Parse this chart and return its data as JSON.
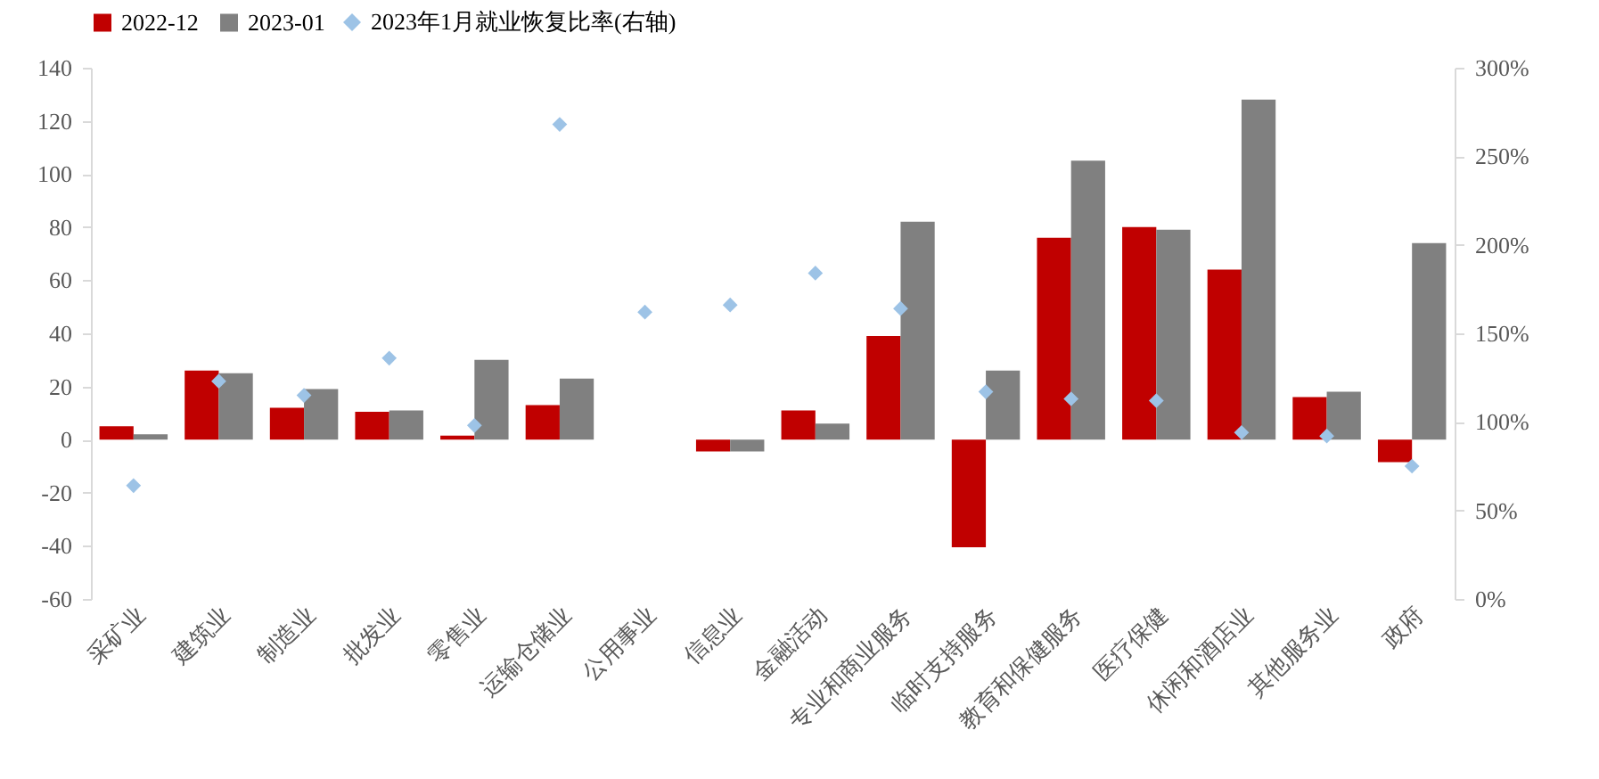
{
  "chart_data": {
    "type": "bar",
    "categories": [
      "采矿业",
      "建筑业",
      "制造业",
      "批发业",
      "零售业",
      "运输仓储业",
      "公用事业",
      "信息业",
      "金融活动",
      "专业和商业服务",
      "临时支持服务",
      "教育和保健服务",
      "医疗保健",
      "休闲和酒店业",
      "其他服务业",
      "政府"
    ],
    "series": [
      {
        "name": "2022-12",
        "color": "#c00000",
        "values": [
          5,
          26,
          12,
          10.5,
          1.5,
          13,
          0,
          -4.5,
          11,
          39,
          -40.5,
          76,
          80,
          64,
          16,
          -8.5
        ]
      },
      {
        "name": "2023-01",
        "color": "#808080",
        "values": [
          2,
          25,
          19,
          11,
          30,
          23,
          0,
          -4.5,
          6,
          82,
          26,
          105,
          79,
          128,
          18,
          74
        ]
      },
      {
        "name": "2023年1月就业恢复比率(右轴)",
        "type": "scatter",
        "axis": "y2",
        "marker": "diamond",
        "color": "#9dc3e6",
        "values": [
          64,
          123,
          115,
          136,
          98,
          268,
          162,
          166,
          184,
          164,
          117,
          113,
          112,
          94,
          92,
          75
        ]
      }
    ],
    "ylim": [
      -60,
      140
    ],
    "yticks": [
      -60,
      -40,
      -20,
      0,
      20,
      40,
      60,
      80,
      100,
      120,
      140
    ],
    "y2lim": [
      0,
      300
    ],
    "y2ticks": [
      {
        "value": 0,
        "label": "0%"
      },
      {
        "value": 50,
        "label": "50%"
      },
      {
        "value": 100,
        "label": "100%"
      },
      {
        "value": 150,
        "label": "150%"
      },
      {
        "value": 200,
        "label": "200%"
      },
      {
        "value": 250,
        "label": "250%"
      },
      {
        "value": 300,
        "label": "300%"
      }
    ],
    "grid": false,
    "legend": "top"
  }
}
